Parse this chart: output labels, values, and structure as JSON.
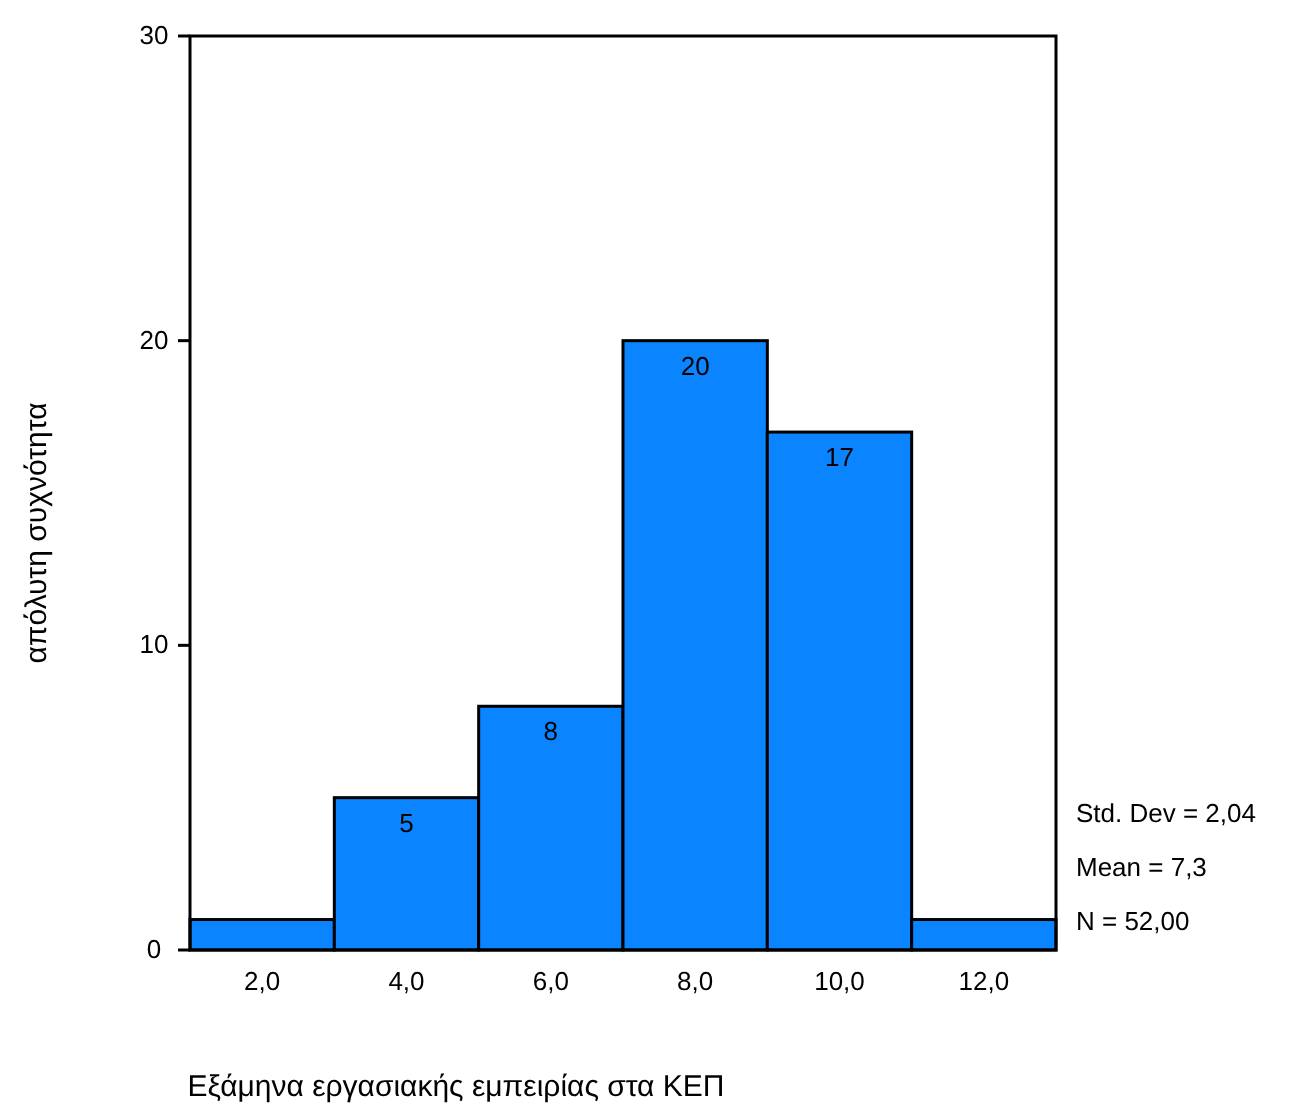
{
  "chart_data": {
    "type": "histogram",
    "xlabel": "Εξάμηνα εργασιακής εμπειρίας στα ΚΕΠ",
    "ylabel": "απόλυτη συχνότητα",
    "bins": [
      1,
      3,
      5,
      7,
      9,
      11,
      13
    ],
    "values": [
      1,
      5,
      8,
      20,
      17,
      1
    ],
    "value_labels": [
      null,
      "5",
      "8",
      "20",
      "17",
      null
    ],
    "color": "#0a84ff",
    "xlim": [
      1,
      13
    ],
    "xticks": [
      {
        "value": 2,
        "label": "2,0"
      },
      {
        "value": 4,
        "label": "4,0"
      },
      {
        "value": 6,
        "label": "6,0"
      },
      {
        "value": 8,
        "label": "8,0"
      },
      {
        "value": 10,
        "label": "10,0"
      },
      {
        "value": 12,
        "label": "12,0"
      }
    ],
    "ylim": [
      0,
      30
    ],
    "yticks": [
      0,
      10,
      20,
      30
    ],
    "grid": false,
    "annotations": [
      "Std. Dev = 2,04",
      "Mean = 7,3",
      "N = 52,00"
    ]
  }
}
